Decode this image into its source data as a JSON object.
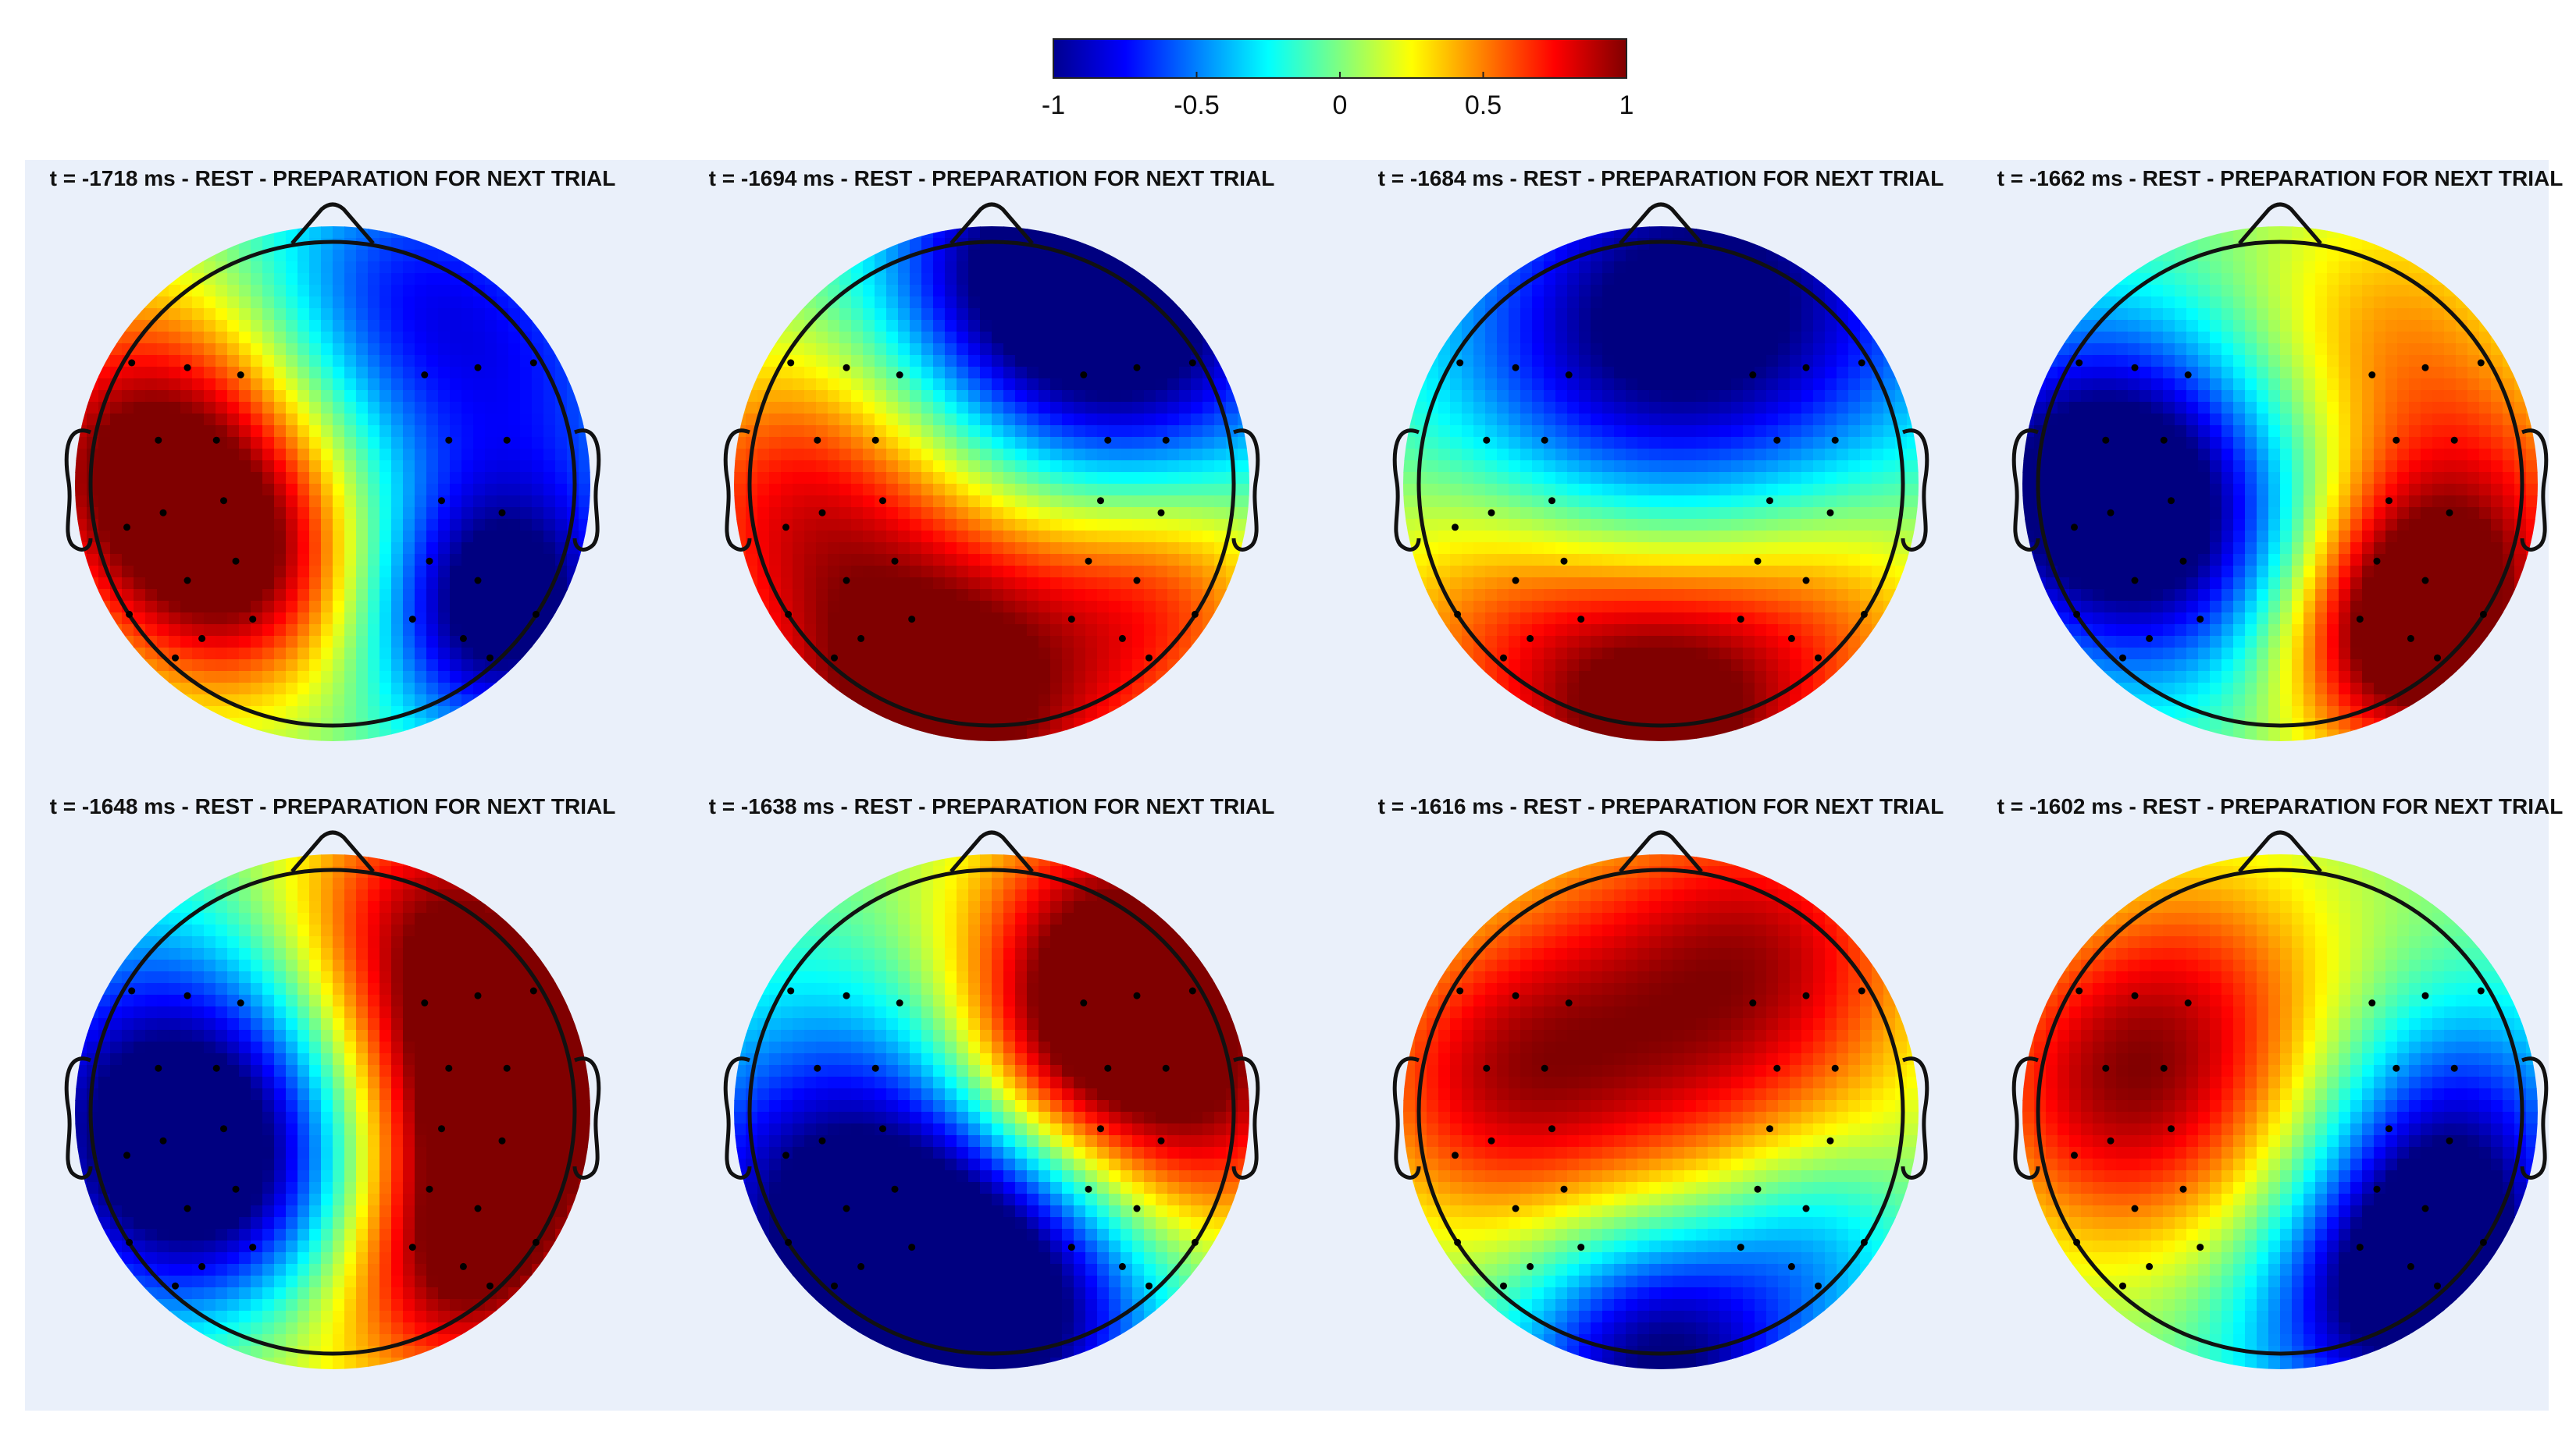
{
  "chart_data": {
    "type": "heatmap",
    "subtype": "eeg-topographic-maps",
    "colorbar": {
      "colormap": "jet",
      "range": [
        -1,
        1
      ],
      "ticks": [
        -1,
        -0.5,
        0,
        0.5,
        1
      ],
      "tick_labels": [
        "-1",
        "-0.5",
        "0",
        "0.5",
        "1"
      ]
    },
    "layout": {
      "rows": 2,
      "cols": 4
    },
    "panels": [
      {
        "title": "t = -1718 ms - REST - PREPARATION FOR NEXT TRIAL",
        "time_ms": -1718,
        "blobs": [
          {
            "x": -0.7,
            "y": 0.1,
            "amp": 1.05,
            "s": 0.45
          },
          {
            "x": -0.35,
            "y": -0.35,
            "amp": 0.75,
            "s": 0.35
          },
          {
            "x": 0.65,
            "y": -0.5,
            "amp": -1.1,
            "s": 0.35
          },
          {
            "x": 0.7,
            "y": 0.4,
            "amp": -0.6,
            "s": 0.5
          },
          {
            "x": 0.2,
            "y": 0.8,
            "amp": -0.45,
            "s": 0.4
          }
        ]
      },
      {
        "title": "t = -1694 ms - REST - PREPARATION FOR NEXT TRIAL",
        "time_ms": -1694,
        "blobs": [
          {
            "x": 0.5,
            "y": 0.6,
            "amp": -1.2,
            "s": 0.5
          },
          {
            "x": -0.2,
            "y": -0.8,
            "amp": 1.2,
            "s": 0.55
          },
          {
            "x": -0.8,
            "y": 0.0,
            "amp": 0.55,
            "s": 0.4
          },
          {
            "x": 0.7,
            "y": -0.4,
            "amp": 0.5,
            "s": 0.35
          },
          {
            "x": 0.0,
            "y": 0.9,
            "amp": -0.5,
            "s": 0.35
          }
        ]
      },
      {
        "title": "t = -1684 ms - REST - PREPARATION FOR NEXT TRIAL",
        "time_ms": -1684,
        "blobs": [
          {
            "x": 0.3,
            "y": 0.7,
            "amp": -0.95,
            "s": 0.6
          },
          {
            "x": -0.3,
            "y": 0.5,
            "amp": -0.4,
            "s": 0.5
          },
          {
            "x": 0.0,
            "y": -0.9,
            "amp": 1.1,
            "s": 0.45
          },
          {
            "x": -0.7,
            "y": -0.5,
            "amp": 0.4,
            "s": 0.4
          },
          {
            "x": 0.7,
            "y": -0.5,
            "amp": 0.4,
            "s": 0.4
          }
        ]
      },
      {
        "title": "t = -1662 ms - REST - PREPARATION FOR NEXT TRIAL",
        "time_ms": -1662,
        "blobs": [
          {
            "x": -0.7,
            "y": 0.0,
            "amp": -1.2,
            "s": 0.45
          },
          {
            "x": -0.3,
            "y": -0.3,
            "amp": -0.4,
            "s": 0.4
          },
          {
            "x": 0.5,
            "y": -0.6,
            "amp": 1.2,
            "s": 0.35
          },
          {
            "x": 0.75,
            "y": -0.1,
            "amp": 0.6,
            "s": 0.4
          },
          {
            "x": 0.4,
            "y": 0.6,
            "amp": 0.4,
            "s": 0.4
          }
        ]
      },
      {
        "title": "t = -1648 ms - REST - PREPARATION FOR NEXT TRIAL",
        "time_ms": -1648,
        "blobs": [
          {
            "x": -0.6,
            "y": 0.0,
            "amp": -1.1,
            "s": 0.5
          },
          {
            "x": -0.4,
            "y": -0.4,
            "amp": -0.5,
            "s": 0.4
          },
          {
            "x": 0.7,
            "y": 0.05,
            "amp": 1.2,
            "s": 0.4
          },
          {
            "x": 0.4,
            "y": 0.7,
            "amp": 0.9,
            "s": 0.45
          },
          {
            "x": 0.5,
            "y": -0.6,
            "amp": 0.9,
            "s": 0.35
          },
          {
            "x": -0.2,
            "y": -0.9,
            "amp": 0.3,
            "s": 0.4
          }
        ]
      },
      {
        "title": "t = -1638 ms - REST - PREPARATION FOR NEXT TRIAL",
        "time_ms": -1638,
        "blobs": [
          {
            "x": -0.5,
            "y": -0.4,
            "amp": -1.2,
            "s": 0.55
          },
          {
            "x": 0.1,
            "y": -0.8,
            "amp": -0.8,
            "s": 0.4
          },
          {
            "x": 0.5,
            "y": 0.6,
            "amp": 1.1,
            "s": 0.45
          },
          {
            "x": 0.8,
            "y": 0.0,
            "amp": 0.7,
            "s": 0.4
          },
          {
            "x": 0.2,
            "y": 0.2,
            "amp": 0.4,
            "s": 0.3
          }
        ]
      },
      {
        "title": "t = -1616 ms - REST - PREPARATION FOR NEXT TRIAL",
        "time_ms": -1616,
        "blobs": [
          {
            "x": 0.0,
            "y": 0.3,
            "amp": 0.8,
            "s": 0.6
          },
          {
            "x": -0.7,
            "y": 0.1,
            "amp": 0.5,
            "s": 0.4
          },
          {
            "x": 0.5,
            "y": 0.7,
            "amp": 0.4,
            "s": 0.4
          },
          {
            "x": 0.0,
            "y": -0.95,
            "amp": -1.1,
            "s": 0.4
          },
          {
            "x": 0.6,
            "y": -0.5,
            "amp": -0.4,
            "s": 0.3
          }
        ]
      },
      {
        "title": "t = -1602 ms - REST - PREPARATION FOR NEXT TRIAL",
        "time_ms": -1602,
        "blobs": [
          {
            "x": -0.6,
            "y": 0.1,
            "amp": 0.9,
            "s": 0.45
          },
          {
            "x": -0.2,
            "y": 0.6,
            "amp": 0.3,
            "s": 0.4
          },
          {
            "x": 0.6,
            "y": -0.6,
            "amp": -1.2,
            "s": 0.35
          },
          {
            "x": 0.7,
            "y": 0.0,
            "amp": -0.6,
            "s": 0.35
          },
          {
            "x": 0.2,
            "y": -0.9,
            "amp": -0.4,
            "s": 0.35
          }
        ]
      }
    ],
    "electrodes": [
      [
        -0.83,
        0.5
      ],
      [
        -0.6,
        0.48
      ],
      [
        -0.38,
        0.45
      ],
      [
        0.38,
        0.45
      ],
      [
        0.6,
        0.48
      ],
      [
        0.83,
        0.5
      ],
      [
        -0.72,
        0.18
      ],
      [
        -0.48,
        0.18
      ],
      [
        0.48,
        0.18
      ],
      [
        0.72,
        0.18
      ],
      [
        -0.7,
        -0.12
      ],
      [
        -0.45,
        -0.07
      ],
      [
        0.45,
        -0.07
      ],
      [
        0.7,
        -0.12
      ],
      [
        -0.6,
        -0.4
      ],
      [
        -0.4,
        -0.32
      ],
      [
        0.4,
        -0.32
      ],
      [
        0.6,
        -0.4
      ],
      [
        -0.85,
        -0.18
      ],
      [
        -0.84,
        -0.54
      ],
      [
        -0.54,
        -0.64
      ],
      [
        -0.33,
        -0.56
      ],
      [
        0.33,
        -0.56
      ],
      [
        0.54,
        -0.64
      ],
      [
        0.84,
        -0.54
      ],
      [
        -0.65,
        -0.72
      ],
      [
        0.65,
        -0.72
      ]
    ]
  }
}
